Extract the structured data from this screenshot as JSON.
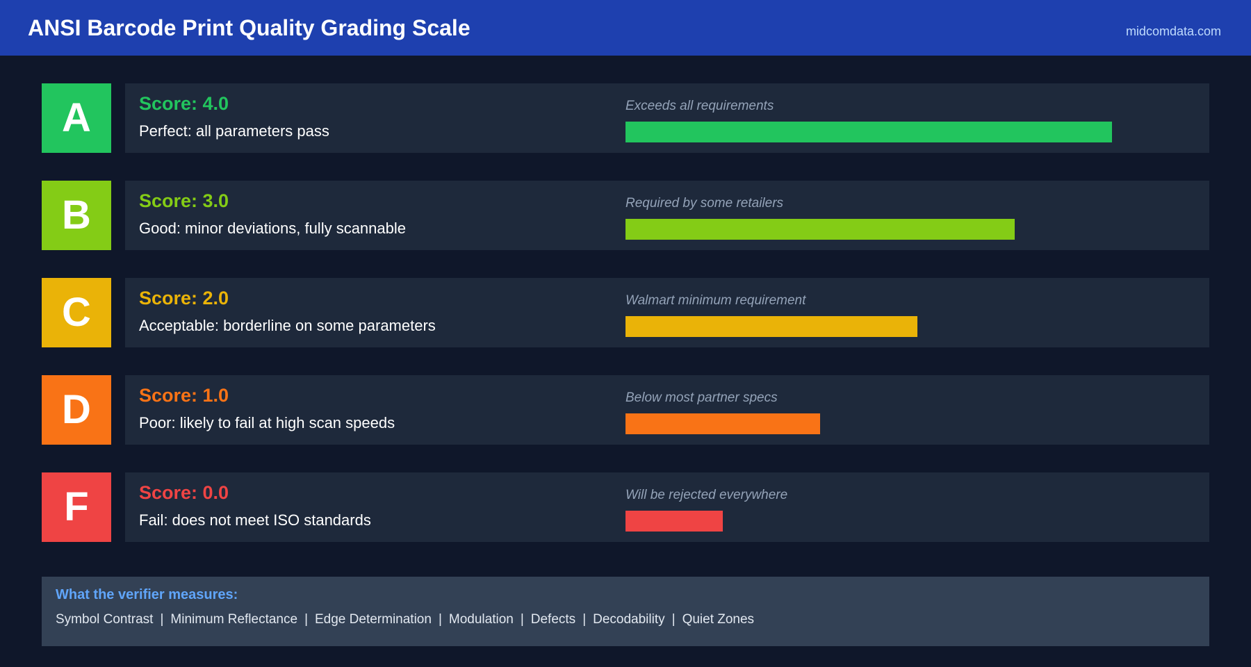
{
  "header": {
    "title": "ANSI Barcode Print Quality Grading Scale",
    "domain": "midcomdata.com",
    "background_color": "#1e40af"
  },
  "grades": [
    {
      "letter": "A",
      "score_label": "Score: 4.0",
      "score_value": 4.0,
      "description": "Perfect: all parameters pass",
      "note": "Exceeds all requirements",
      "color": "#22c55e"
    },
    {
      "letter": "B",
      "score_label": "Score: 3.0",
      "score_value": 3.0,
      "description": "Good: minor deviations, fully scannable",
      "note": "Required by some retailers",
      "color": "#84cc16"
    },
    {
      "letter": "C",
      "score_label": "Score: 2.0",
      "score_value": 2.0,
      "description": "Acceptable: borderline on some parameters",
      "note": "Walmart minimum requirement",
      "color": "#eab308"
    },
    {
      "letter": "D",
      "score_label": "Score: 1.0",
      "score_value": 1.0,
      "description": "Poor: likely to fail at high scan speeds",
      "note": "Below most partner specs",
      "color": "#f97316"
    },
    {
      "letter": "F",
      "score_label": "Score: 0.0",
      "score_value": 0.0,
      "description": "Fail: does not meet ISO standards",
      "note": "Will be rejected everywhere",
      "color": "#ef4444"
    }
  ],
  "bar_fill_fractions": [
    0.833,
    0.667,
    0.5,
    0.333,
    0.167
  ],
  "footer": {
    "heading": "What the verifier measures:",
    "parameters": [
      "Symbol Contrast",
      "Minimum Reflectance",
      "Edge Determination",
      "Modulation",
      "Defects",
      "Decodability",
      "Quiet Zones"
    ],
    "separator": "|"
  }
}
